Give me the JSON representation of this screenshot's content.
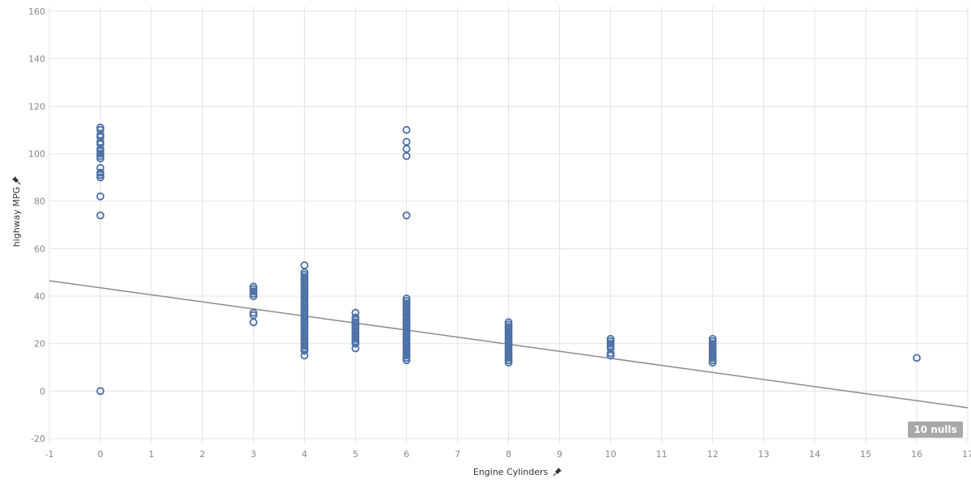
{
  "chart_data": {
    "type": "scatter",
    "xlabel": "Engine Cylinders",
    "ylabel": "highway MPG",
    "xlim": [
      -1,
      17
    ],
    "ylim": [
      -22,
      162
    ],
    "xticks": [
      "-1",
      "0",
      "1",
      "2",
      "3",
      "4",
      "5",
      "6",
      "7",
      "8",
      "9",
      "10",
      "11",
      "12",
      "13",
      "14",
      "15",
      "16",
      "17"
    ],
    "yticks": [
      "-20",
      "0",
      "20",
      "40",
      "60",
      "80",
      "100",
      "120",
      "140",
      "160"
    ],
    "grid": true,
    "nulls_label": "10 nulls",
    "pin_icon": "pin-icon",
    "colors": {
      "point": "#4a6fa5",
      "trend": "#8c8c8c",
      "grid": "#e3e3e3",
      "badge": "#a8a8a8"
    },
    "trendline": {
      "x": [
        -1,
        17
      ],
      "y": [
        46.5,
        -7
      ]
    },
    "points": [
      [
        0,
        111
      ],
      [
        0,
        110
      ],
      [
        0,
        108
      ],
      [
        0,
        107
      ],
      [
        0,
        105
      ],
      [
        0,
        104
      ],
      [
        0,
        102
      ],
      [
        0,
        101
      ],
      [
        0,
        100
      ],
      [
        0,
        99
      ],
      [
        0,
        98
      ],
      [
        0,
        94
      ],
      [
        0,
        92
      ],
      [
        0,
        91
      ],
      [
        0,
        90
      ],
      [
        0,
        82
      ],
      [
        0,
        74
      ],
      [
        0,
        0
      ],
      [
        3,
        44
      ],
      [
        3,
        43
      ],
      [
        3,
        42
      ],
      [
        3,
        41
      ],
      [
        3,
        40
      ],
      [
        3,
        33
      ],
      [
        3,
        32
      ],
      [
        3,
        29
      ],
      [
        4,
        53
      ],
      [
        4,
        50
      ],
      [
        4,
        49
      ],
      [
        4,
        48
      ],
      [
        4,
        47
      ],
      [
        4,
        46
      ],
      [
        4,
        45
      ],
      [
        4,
        44
      ],
      [
        4,
        43
      ],
      [
        4,
        42
      ],
      [
        4,
        41
      ],
      [
        4,
        40
      ],
      [
        4,
        39
      ],
      [
        4,
        38
      ],
      [
        4,
        37
      ],
      [
        4,
        36
      ],
      [
        4,
        35
      ],
      [
        4,
        34
      ],
      [
        4,
        33
      ],
      [
        4,
        32
      ],
      [
        4,
        31
      ],
      [
        4,
        30
      ],
      [
        4,
        29
      ],
      [
        4,
        28
      ],
      [
        4,
        27
      ],
      [
        4,
        26
      ],
      [
        4,
        25
      ],
      [
        4,
        24
      ],
      [
        4,
        23
      ],
      [
        4,
        22
      ],
      [
        4,
        21
      ],
      [
        4,
        20
      ],
      [
        4,
        19
      ],
      [
        4,
        18
      ],
      [
        4,
        17
      ],
      [
        4,
        15
      ],
      [
        5,
        33
      ],
      [
        5,
        31
      ],
      [
        5,
        30
      ],
      [
        5,
        29
      ],
      [
        5,
        28
      ],
      [
        5,
        27
      ],
      [
        5,
        26
      ],
      [
        5,
        25
      ],
      [
        5,
        24
      ],
      [
        5,
        23
      ],
      [
        5,
        22
      ],
      [
        5,
        21
      ],
      [
        5,
        20
      ],
      [
        5,
        18
      ],
      [
        6,
        110
      ],
      [
        6,
        105
      ],
      [
        6,
        102
      ],
      [
        6,
        99
      ],
      [
        6,
        74
      ],
      [
        6,
        39
      ],
      [
        6,
        38
      ],
      [
        6,
        37
      ],
      [
        6,
        36
      ],
      [
        6,
        35
      ],
      [
        6,
        34
      ],
      [
        6,
        33
      ],
      [
        6,
        32
      ],
      [
        6,
        31
      ],
      [
        6,
        30
      ],
      [
        6,
        29
      ],
      [
        6,
        28
      ],
      [
        6,
        27
      ],
      [
        6,
        26
      ],
      [
        6,
        25
      ],
      [
        6,
        24
      ],
      [
        6,
        23
      ],
      [
        6,
        22
      ],
      [
        6,
        21
      ],
      [
        6,
        20
      ],
      [
        6,
        19
      ],
      [
        6,
        18
      ],
      [
        6,
        17
      ],
      [
        6,
        16
      ],
      [
        6,
        15
      ],
      [
        6,
        14
      ],
      [
        6,
        13
      ],
      [
        8,
        29
      ],
      [
        8,
        28
      ],
      [
        8,
        27
      ],
      [
        8,
        26
      ],
      [
        8,
        25
      ],
      [
        8,
        24
      ],
      [
        8,
        23
      ],
      [
        8,
        22
      ],
      [
        8,
        21
      ],
      [
        8,
        20
      ],
      [
        8,
        19
      ],
      [
        8,
        18
      ],
      [
        8,
        17
      ],
      [
        8,
        16
      ],
      [
        8,
        15
      ],
      [
        8,
        14
      ],
      [
        8,
        13
      ],
      [
        8,
        12
      ],
      [
        10,
        22
      ],
      [
        10,
        21
      ],
      [
        10,
        20
      ],
      [
        10,
        19
      ],
      [
        10,
        18
      ],
      [
        10,
        16
      ],
      [
        10,
        15
      ],
      [
        12,
        22
      ],
      [
        12,
        21
      ],
      [
        12,
        20
      ],
      [
        12,
        19
      ],
      [
        12,
        18
      ],
      [
        12,
        17
      ],
      [
        12,
        16
      ],
      [
        12,
        15
      ],
      [
        12,
        14
      ],
      [
        12,
        13
      ],
      [
        12,
        12
      ],
      [
        16,
        14
      ]
    ]
  }
}
